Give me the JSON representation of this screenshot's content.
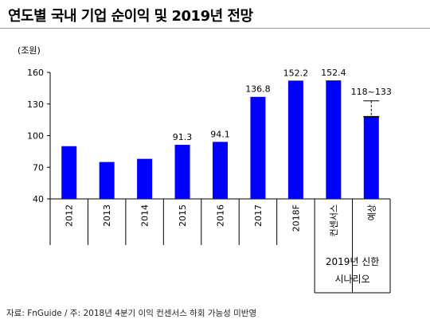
{
  "title": "연도별 국내 기업 순이익 및 2019년 전망",
  "source": "자료: FnGuide  /  주: 2018년 4분기 이익 컨센서스 하회 가능성 미반영",
  "chart_data": {
    "type": "bar",
    "unit_label": "(조원)",
    "categories": [
      "2012",
      "2013",
      "2014",
      "2015",
      "2016",
      "2017",
      "2018F",
      "컨센서스",
      "예상"
    ],
    "values": [
      90,
      75,
      78,
      91.3,
      94.1,
      136.8,
      152.2,
      152.4,
      118
    ],
    "data_labels": [
      "",
      "",
      "",
      "91.3",
      "94.1",
      "136.8",
      "152.2",
      "152.4",
      "118~133"
    ],
    "range_marker": {
      "low": 118,
      "high": 133
    },
    "group_label": [
      "2019년 신한",
      "시나리오"
    ],
    "ylim": [
      40,
      160
    ],
    "yticks": [
      40,
      70,
      100,
      130,
      160
    ],
    "bar_color": "#0000ff",
    "grid": false
  }
}
